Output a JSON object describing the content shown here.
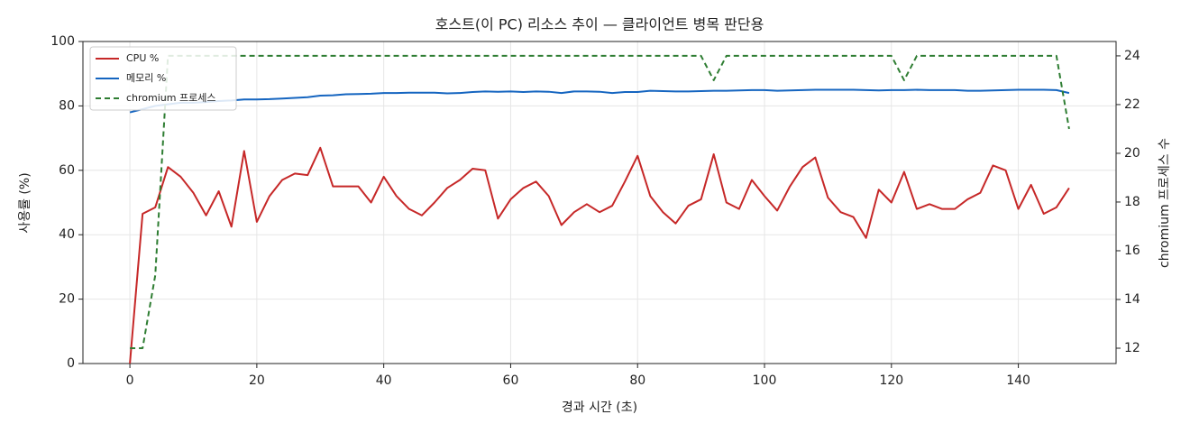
{
  "chart_data": {
    "type": "line",
    "title": "호스트(이 PC) 리소스 추이 — 클라이언트 병목 판단용",
    "xlabel": "경과 시간 (초)",
    "ylabel": "사용률 (%)",
    "y2label": "chromium 프로세스 수",
    "x": [
      0,
      2,
      4,
      6,
      8,
      10,
      12,
      14,
      16,
      18,
      20,
      22,
      24,
      26,
      28,
      30,
      32,
      34,
      36,
      38,
      40,
      42,
      44,
      46,
      48,
      50,
      52,
      54,
      56,
      58,
      60,
      62,
      64,
      66,
      68,
      70,
      72,
      74,
      76,
      78,
      80,
      82,
      84,
      86,
      88,
      90,
      92,
      94,
      96,
      98,
      100,
      102,
      104,
      106,
      108,
      110,
      112,
      114,
      116,
      118,
      120,
      122,
      124,
      126,
      128,
      130,
      132,
      134,
      136,
      138,
      140,
      142,
      144,
      146,
      148
    ],
    "series": [
      {
        "name": "CPU %",
        "color": "#c62828",
        "dash": false,
        "values": [
          0,
          46.5,
          48.5,
          61,
          58,
          53,
          46,
          53.5,
          42.5,
          66,
          44,
          52,
          57,
          59,
          58.5,
          67,
          55,
          55,
          55,
          50,
          58,
          52,
          48,
          46,
          50,
          54.5,
          57,
          60.5,
          60,
          45,
          51,
          54.5,
          56.5,
          52,
          43,
          47,
          49.5,
          47,
          49,
          56.5,
          64.5,
          52,
          47,
          43.5,
          49,
          51,
          65,
          50,
          48,
          57,
          52,
          47.5,
          55,
          61,
          64,
          51.5,
          47,
          45.5,
          39,
          54,
          50,
          59.5,
          48,
          49.5,
          48,
          48,
          51,
          53,
          61.5,
          60,
          48,
          55.5,
          46.5,
          48.5,
          54.5
        ]
      },
      {
        "name": "메모리 %",
        "color": "#1565c0",
        "dash": false,
        "values": [
          78,
          79,
          80,
          80.5,
          81,
          81,
          81.2,
          81.5,
          81.7,
          82,
          82,
          82.1,
          82.3,
          82.5,
          82.7,
          83.2,
          83.3,
          83.6,
          83.7,
          83.8,
          84,
          84,
          84.1,
          84.1,
          84.1,
          83.9,
          84,
          84.3,
          84.5,
          84.4,
          84.5,
          84.3,
          84.5,
          84.4,
          84,
          84.5,
          84.5,
          84.4,
          84,
          84.3,
          84.3,
          84.7,
          84.6,
          84.5,
          84.5,
          84.6,
          84.7,
          84.7,
          84.8,
          84.9,
          84.9,
          84.7,
          84.8,
          84.9,
          85,
          85,
          85,
          85,
          84.9,
          84.8,
          84.9,
          84.9,
          85,
          84.9,
          84.9,
          84.9,
          84.7,
          84.7,
          84.8,
          84.9,
          85,
          85,
          85,
          84.9,
          84
        ]
      },
      {
        "name": "chromium 프로세스",
        "color": "#2e7d32",
        "dash": true,
        "axis": "y2",
        "values": [
          12,
          12,
          15,
          24,
          24,
          24,
          24,
          24,
          24,
          24,
          24,
          24,
          24,
          24,
          24,
          24,
          24,
          24,
          24,
          24,
          24,
          24,
          24,
          24,
          24,
          24,
          24,
          24,
          24,
          24,
          24,
          24,
          24,
          24,
          24,
          24,
          24,
          24,
          24,
          24,
          24,
          24,
          24,
          24,
          24,
          24,
          23,
          24,
          24,
          24,
          24,
          24,
          24,
          24,
          24,
          24,
          24,
          24,
          24,
          24,
          24,
          23,
          24,
          24,
          24,
          24,
          24,
          24,
          24,
          24,
          24,
          24,
          24,
          24,
          21
        ]
      }
    ],
    "xlim": [
      -7.4,
      155.4
    ],
    "xticks": [
      0,
      20,
      40,
      60,
      80,
      100,
      120,
      140
    ],
    "ylim": [
      0,
      100
    ],
    "yticks": [
      0,
      20,
      40,
      60,
      80,
      100
    ],
    "y2lim": [
      11.37,
      24.59
    ],
    "y2ticks": [
      12,
      14,
      16,
      18,
      20,
      22,
      24
    ],
    "grid": true,
    "legend": "upper-left"
  }
}
